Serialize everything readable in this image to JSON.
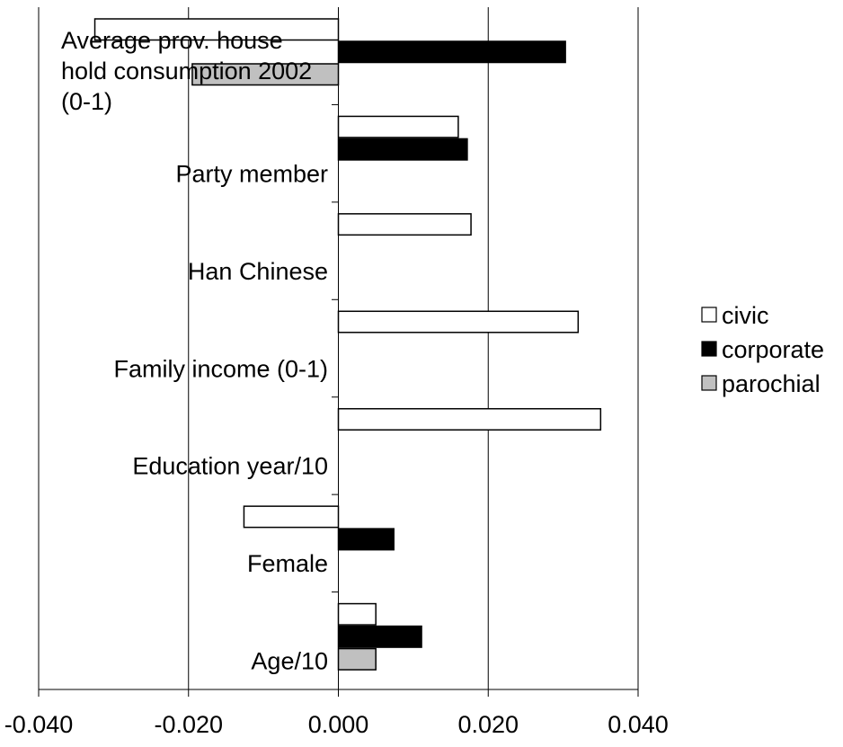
{
  "chart_data": {
    "type": "bar",
    "orientation": "horizontal",
    "title": "",
    "xlabel": "",
    "ylabel": "",
    "xlim": [
      -0.04,
      0.04
    ],
    "x_ticks": [
      "-0.040",
      "-0.020",
      "0.000",
      "0.020",
      "0.040"
    ],
    "x_tick_values": [
      -0.04,
      -0.02,
      0.0,
      0.02,
      0.04
    ],
    "grid": "vertical gridlines at major ticks",
    "legend_position": "right",
    "categories": [
      "Average prov. house hold consumption 2002 (0-1)",
      "Party member",
      "Han Chinese",
      "Family income (0-1)",
      "Education year/10",
      "Female",
      "Age/10"
    ],
    "category_label_lines": [
      [
        "Average prov. house",
        "hold consumption 2002",
        "(0-1)"
      ],
      [
        "Party member"
      ],
      [
        "Han Chinese"
      ],
      [
        "Family income (0-1)"
      ],
      [
        "Education year/10"
      ],
      [
        "Female"
      ],
      [
        "Age/10"
      ]
    ],
    "series": [
      {
        "name": "civic",
        "color": "#ffffff",
        "values": [
          -0.0325,
          0.016,
          0.0177,
          0.032,
          0.035,
          -0.0126,
          0.005
        ]
      },
      {
        "name": "corporate",
        "color": "#000000",
        "values": [
          0.0303,
          0.0172,
          null,
          null,
          null,
          0.0074,
          0.0111
        ]
      },
      {
        "name": "parochial",
        "color": "#c0c0c0",
        "values": [
          -0.0195,
          null,
          null,
          null,
          null,
          null,
          0.005
        ]
      }
    ]
  }
}
